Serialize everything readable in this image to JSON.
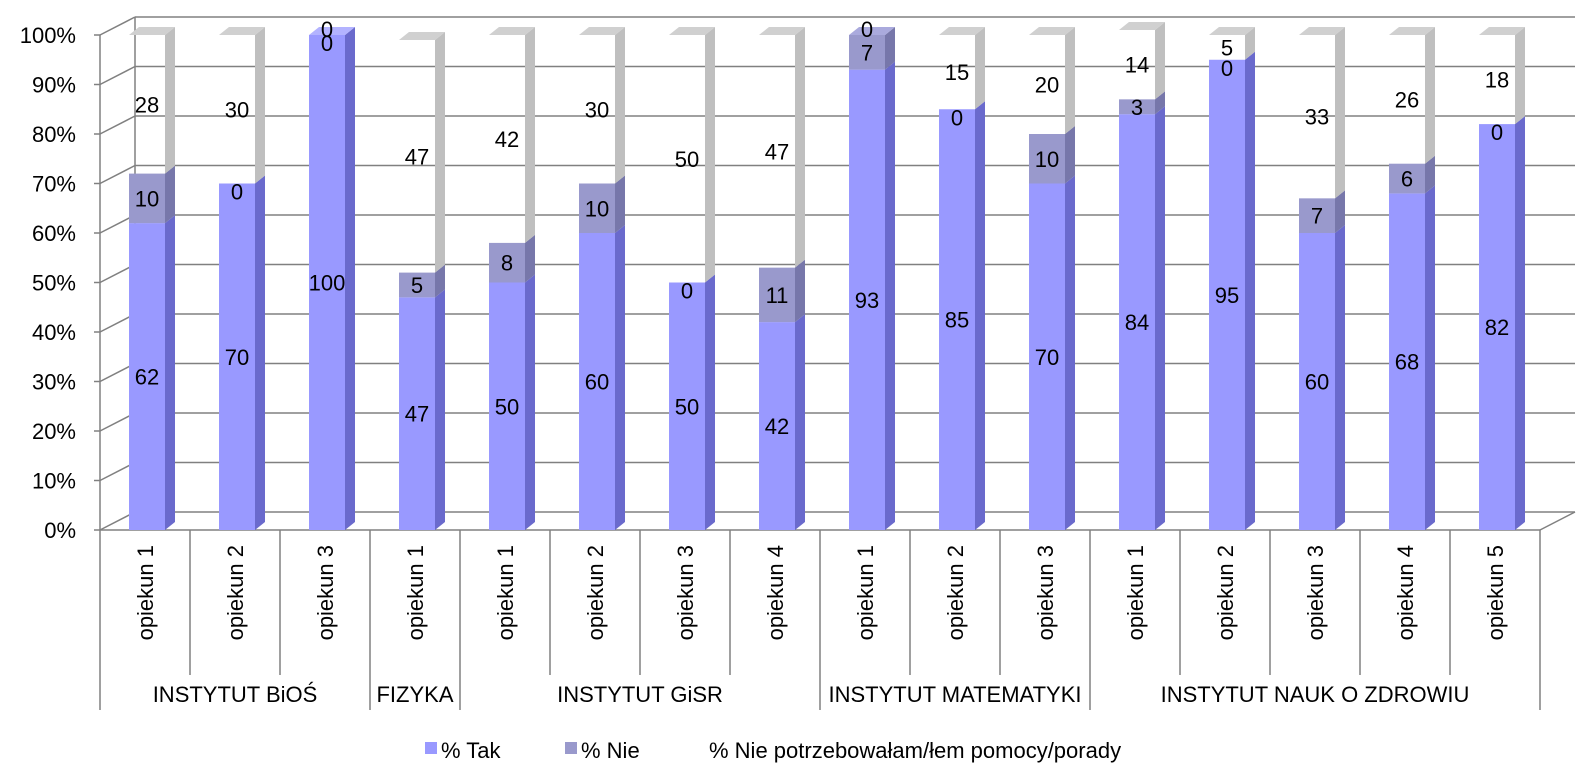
{
  "chart_data": {
    "type": "bar",
    "stacked": true,
    "three_d": true,
    "percent_stacked": true,
    "y_tick_labels": [
      "0%",
      "10%",
      "20%",
      "30%",
      "40%",
      "50%",
      "60%",
      "70%",
      "80%",
      "90%",
      "100%"
    ],
    "ylim": [
      0,
      100
    ],
    "grid": true,
    "legend_position": "bottom",
    "groups": [
      {
        "label": "INSTYTUT BiOŚ",
        "count": 3
      },
      {
        "label": "FIZYKA",
        "count": 1
      },
      {
        "label": "INSTYTUT GiSR",
        "count": 4
      },
      {
        "label": "INSTYTUT MATEMATYKI",
        "count": 3
      },
      {
        "label": "INSTYTUT NAUK O ZDROWIU",
        "count": 5
      }
    ],
    "categories": [
      "opiekun 1",
      "opiekun 2",
      "opiekun 3",
      "opiekun 1",
      "opiekun 1",
      "opiekun 2",
      "opiekun 3",
      "opiekun 4",
      "opiekun 1",
      "opiekun 2",
      "opiekun 3",
      "opiekun 1",
      "opiekun 2",
      "opiekun 3",
      "opiekun 4",
      "opiekun 5"
    ],
    "series": [
      {
        "name": "% Tak",
        "color": "#9999ff",
        "values": [
          62,
          70,
          100,
          47,
          50,
          60,
          50,
          42,
          93,
          85,
          70,
          84,
          95,
          60,
          68,
          82
        ]
      },
      {
        "name": "% Nie",
        "color": "#9999cc",
        "values": [
          10,
          0,
          0,
          5,
          8,
          10,
          0,
          11,
          7,
          0,
          10,
          3,
          0,
          7,
          6,
          0
        ]
      },
      {
        "name": "% Nie potrzebowałam/łem pomocy/porady",
        "color": "#ffffff",
        "values": [
          28,
          30,
          0,
          47,
          42,
          30,
          50,
          47,
          0,
          15,
          20,
          14,
          5,
          33,
          26,
          18
        ]
      }
    ]
  }
}
